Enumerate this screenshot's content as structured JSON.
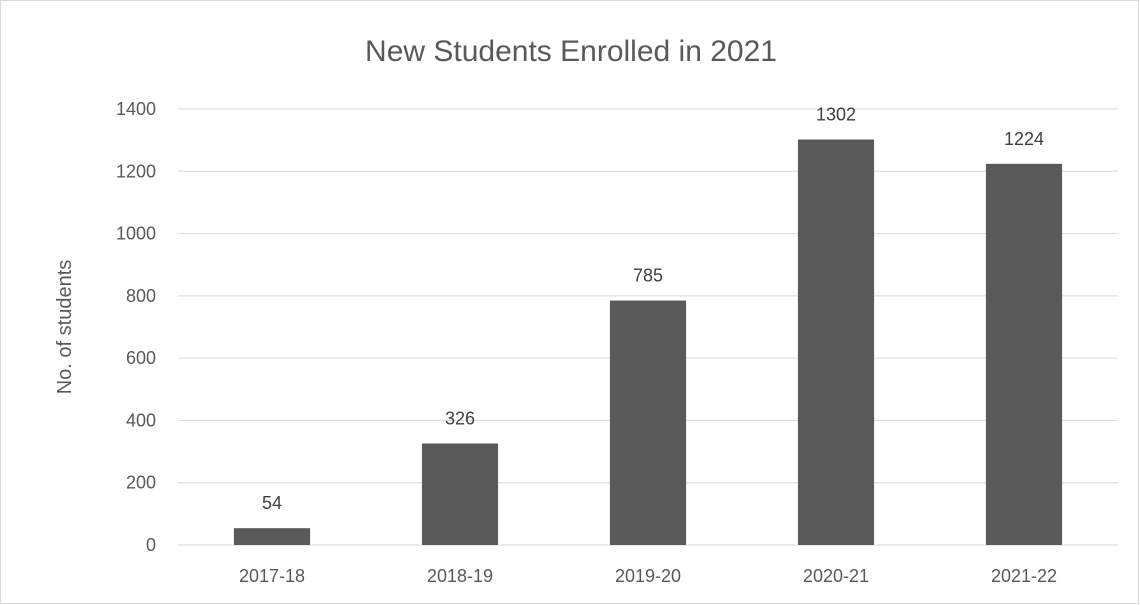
{
  "chart_data": {
    "type": "bar",
    "title": "New Students Enrolled in 2021",
    "xlabel": "",
    "ylabel": "No. of students",
    "categories": [
      "2017-18",
      "2018-19",
      "2019-20",
      "2020-21",
      "2021-22"
    ],
    "values": [
      54,
      326,
      785,
      1302,
      1224
    ],
    "ylim": [
      0,
      1400
    ],
    "yticks": [
      0,
      200,
      400,
      600,
      800,
      1000,
      1200,
      1400
    ],
    "grid": true,
    "legend": "none",
    "data_labels": true,
    "bar_color": "#595959"
  }
}
